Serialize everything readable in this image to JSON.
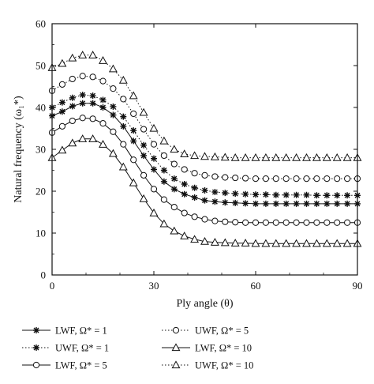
{
  "chart_data": {
    "type": "line",
    "xlabel": "Ply angle (θ)",
    "ylabel": "Natural frequency (ω₁*)",
    "xlim": [
      0,
      90
    ],
    "ylim": [
      0,
      60
    ],
    "x_ticks": [
      "0",
      "30",
      "60",
      "90"
    ],
    "y_ticks": [
      "0",
      "10",
      "20",
      "30",
      "40",
      "50",
      "60"
    ],
    "grid": false,
    "legend_position": "bottom",
    "x": [
      0,
      3,
      6,
      9,
      12,
      15,
      18,
      21,
      24,
      27,
      30,
      33,
      36,
      39,
      42,
      45,
      48,
      51,
      54,
      57,
      60,
      63,
      66,
      69,
      72,
      75,
      78,
      81,
      84,
      87,
      90
    ],
    "series": [
      {
        "name": "LWF, Ω* = 1",
        "marker": "asterisk",
        "line": "solid",
        "values": [
          38,
          39,
          40.3,
          41,
          41,
          40,
          38.2,
          35.5,
          32,
          28.5,
          25.2,
          22.3,
          20.5,
          19.3,
          18.5,
          17.8,
          17.5,
          17.3,
          17.2,
          17.1,
          17,
          17,
          17,
          17,
          17,
          17,
          17,
          17,
          17,
          17,
          17
        ]
      },
      {
        "name": "UWF, Ω* = 1",
        "marker": "asterisk",
        "line": "dotted",
        "values": [
          40,
          41.2,
          42.3,
          43,
          42.8,
          41.8,
          40.2,
          37.8,
          34.5,
          31,
          27.8,
          25,
          23,
          21.7,
          20.8,
          20.2,
          19.8,
          19.6,
          19.4,
          19.3,
          19.2,
          19.2,
          19.1,
          19.1,
          19.1,
          19.1,
          19,
          19,
          19,
          19,
          19
        ]
      },
      {
        "name": "LWF, Ω* = 5",
        "marker": "circle",
        "line": "solid",
        "values": [
          34,
          35.5,
          36.8,
          37.5,
          37.3,
          36.2,
          34.2,
          31.2,
          27.5,
          23.8,
          20.5,
          18,
          16.2,
          14.8,
          13.9,
          13.3,
          12.9,
          12.7,
          12.6,
          12.5,
          12.5,
          12.5,
          12.5,
          12.5,
          12.5,
          12.5,
          12.5,
          12.5,
          12.5,
          12.5,
          12.5
        ]
      },
      {
        "name": "UWF, Ω* = 5",
        "marker": "circle",
        "line": "dotted",
        "values": [
          44,
          45.5,
          46.8,
          47.5,
          47.3,
          46.3,
          44.5,
          42,
          38.5,
          34.8,
          31.2,
          28.5,
          26.5,
          25.2,
          24.3,
          23.8,
          23.5,
          23.3,
          23.2,
          23.1,
          23,
          23,
          23,
          23,
          23,
          23,
          23,
          23,
          23,
          23,
          23
        ]
      },
      {
        "name": "LWF, Ω* = 10",
        "marker": "triangle",
        "line": "solid",
        "values": [
          28,
          29.8,
          31.5,
          32.5,
          32.5,
          31.2,
          29,
          25.8,
          22,
          18.2,
          14.8,
          12.2,
          10.5,
          9.3,
          8.5,
          8,
          7.8,
          7.7,
          7.6,
          7.6,
          7.5,
          7.5,
          7.5,
          7.5,
          7.5,
          7.5,
          7.5,
          7.5,
          7.5,
          7.5,
          7.5
        ]
      },
      {
        "name": "UWF, Ω* = 10",
        "marker": "triangle",
        "line": "dotted",
        "values": [
          49.5,
          50.5,
          51.8,
          52.5,
          52.5,
          51.2,
          49.2,
          46.5,
          42.8,
          38.8,
          35,
          32,
          30,
          28.9,
          28.5,
          28.3,
          28.2,
          28.1,
          28,
          28,
          28,
          28,
          28,
          28,
          28,
          28,
          28,
          28,
          28,
          28,
          28
        ]
      }
    ]
  }
}
